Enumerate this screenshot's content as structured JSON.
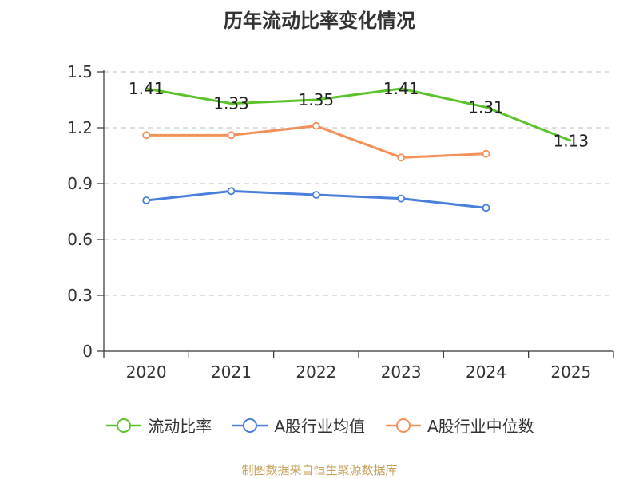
{
  "chart_data": {
    "type": "line",
    "title": "历年流动比率变化情况",
    "categories": [
      "2020",
      "2021",
      "2022",
      "2023",
      "2024",
      "2025"
    ],
    "ylim": [
      0,
      1.5
    ],
    "yticks": [
      "0",
      "0.3",
      "0.6",
      "0.9",
      "1.2",
      "1.5"
    ],
    "ytick_values": [
      0,
      0.3,
      0.6,
      0.9,
      1.2,
      1.5
    ],
    "grid": true,
    "legend_position": "bottom",
    "series": [
      {
        "name": "流动比率",
        "color": "#5cc22c",
        "values": [
          1.41,
          1.33,
          1.35,
          1.41,
          1.31,
          1.13
        ],
        "labels": [
          "1.41",
          "1.33",
          "1.35",
          "1.41",
          "1.31",
          "1.13"
        ]
      },
      {
        "name": "A股行业均值",
        "color": "#4a7fdc",
        "values": [
          0.81,
          0.86,
          0.84,
          0.82,
          0.77,
          null
        ]
      },
      {
        "name": "A股行业中位数",
        "color": "#f4905a",
        "values": [
          1.16,
          1.16,
          1.21,
          1.04,
          1.06,
          null
        ]
      }
    ],
    "source": "制图数据来自恒生聚源数据库"
  }
}
